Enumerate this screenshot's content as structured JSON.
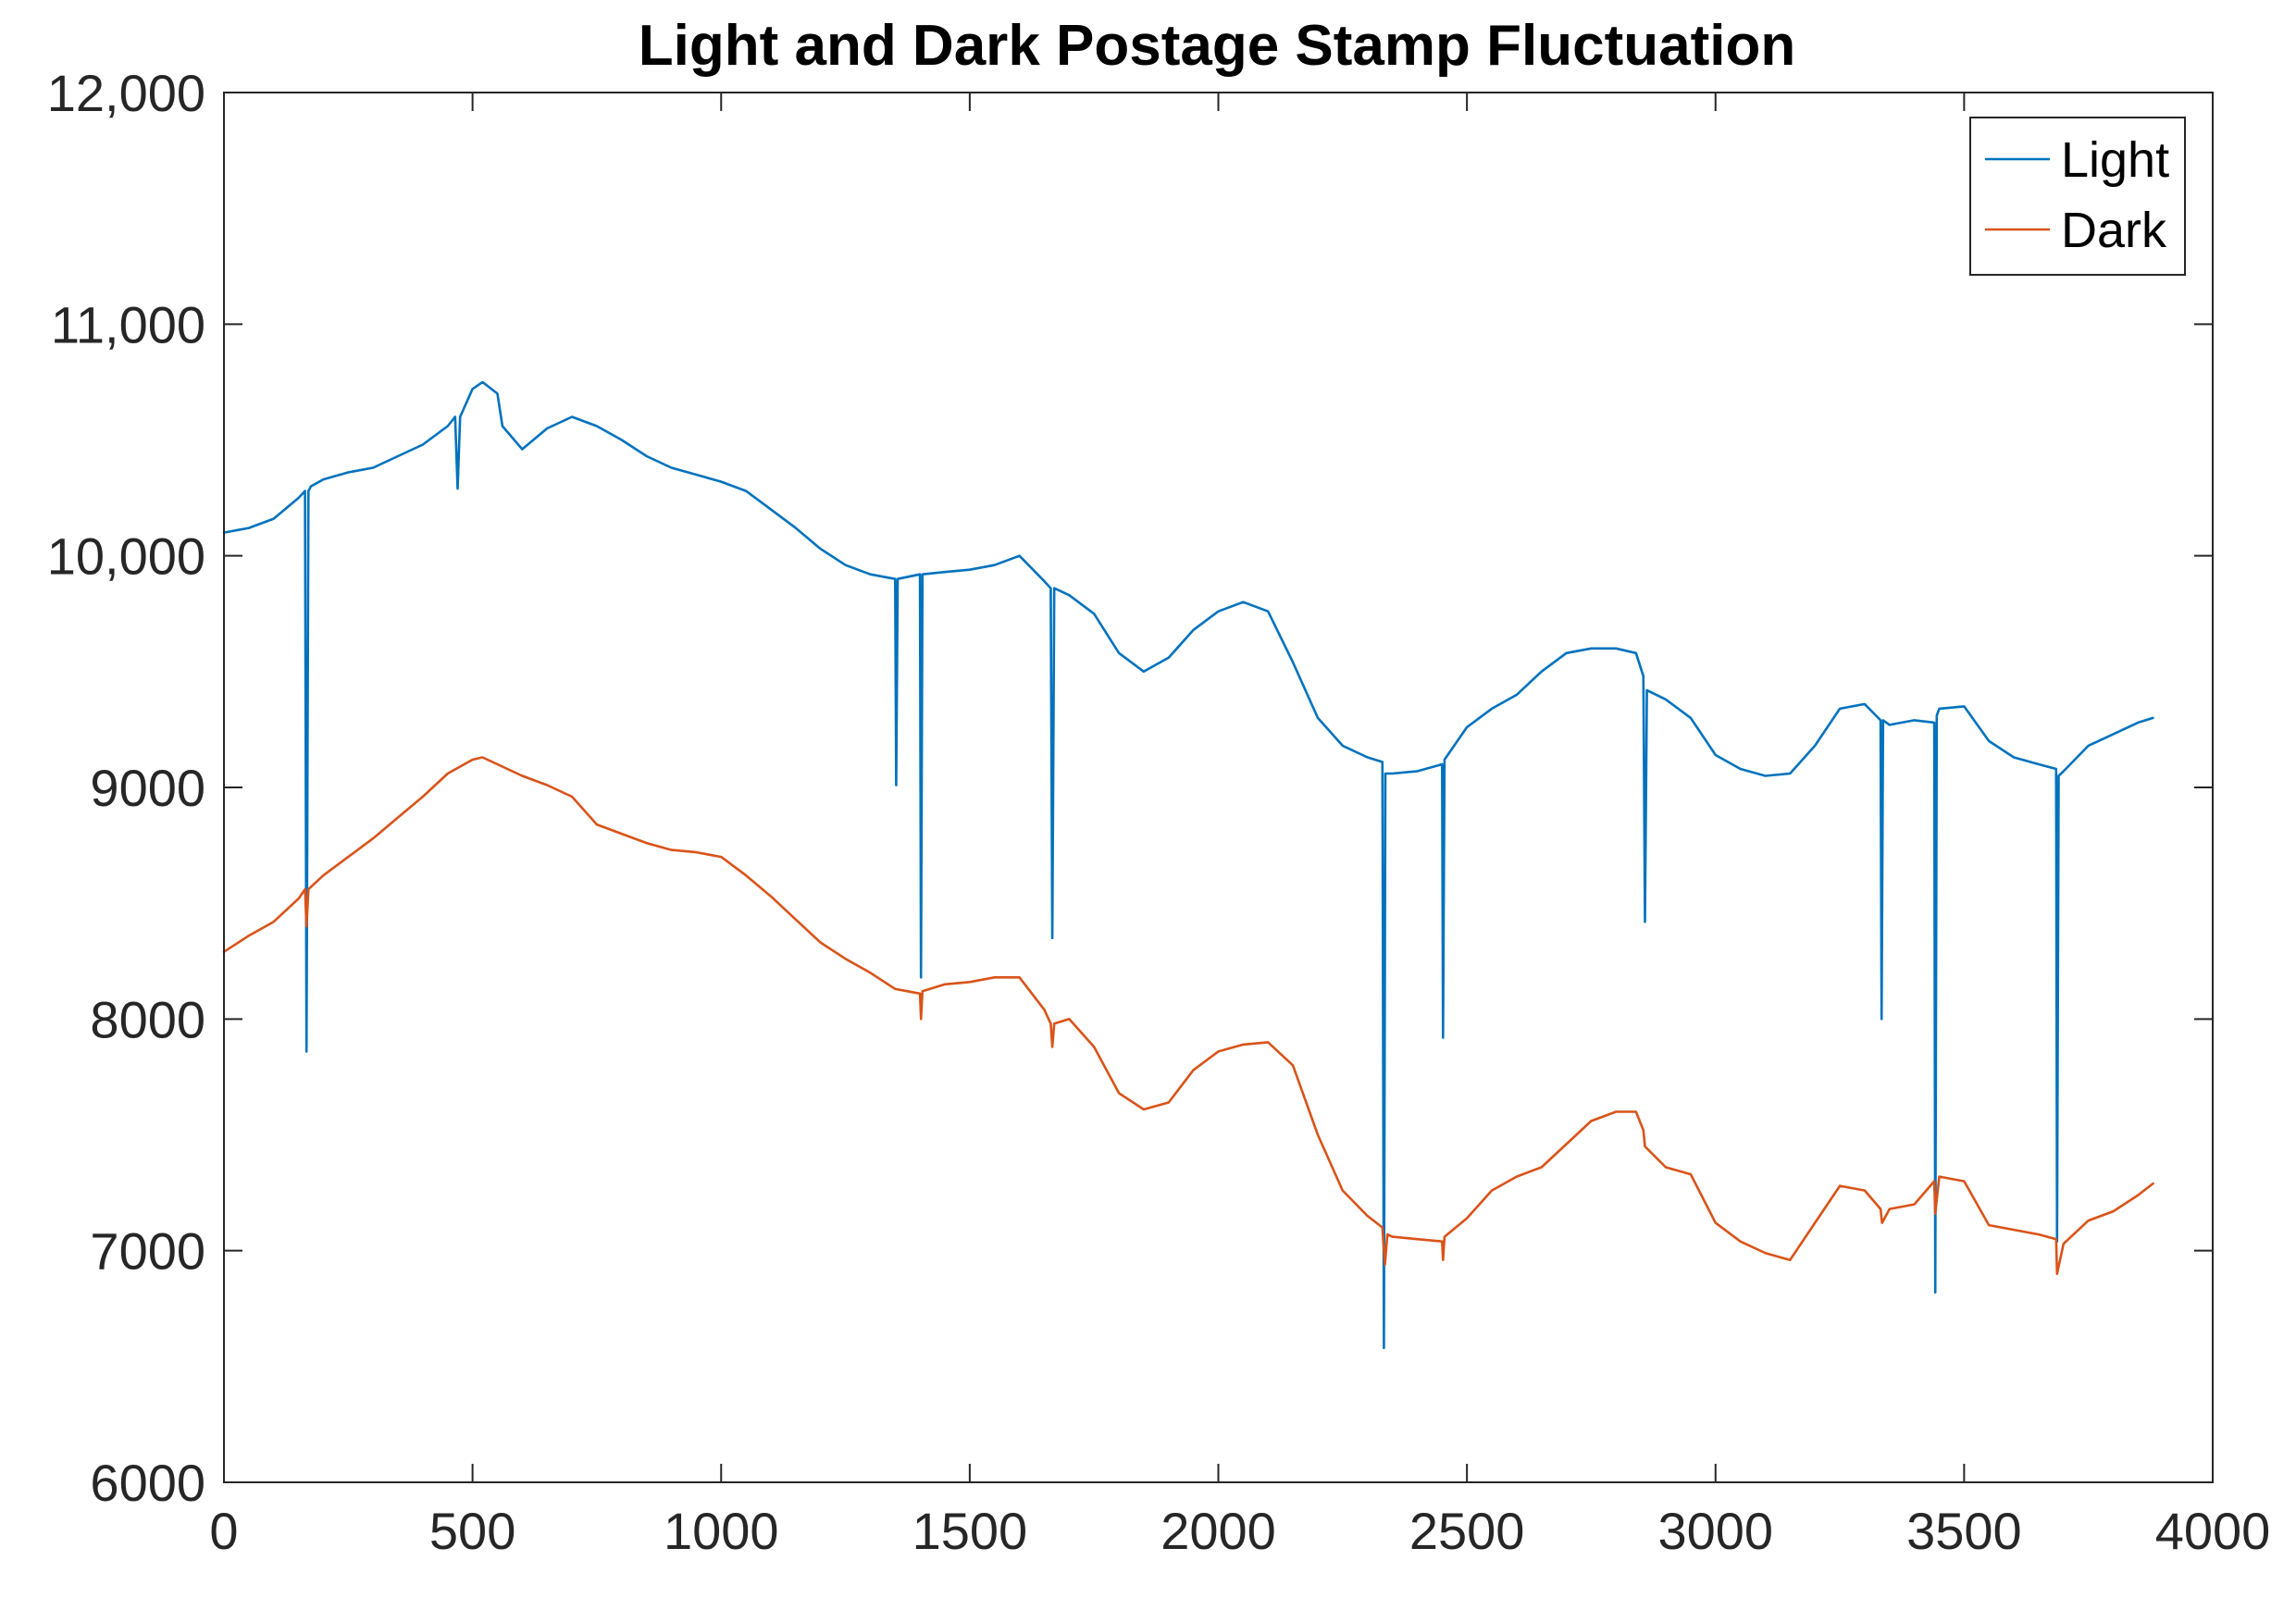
{
  "chart_data": {
    "type": "line",
    "title": "Light and Dark Postage Stamp Fluctuation",
    "xlabel": "",
    "ylabel": "",
    "xlim": [
      0,
      4000
    ],
    "ylim": [
      6000,
      12000
    ],
    "x_ticks": [
      0,
      500,
      1000,
      1500,
      2000,
      2500,
      3000,
      3500,
      4000
    ],
    "x_tick_labels": [
      "0",
      "500",
      "1000",
      "1500",
      "2000",
      "2500",
      "3000",
      "3500",
      "4000"
    ],
    "y_ticks": [
      6000,
      7000,
      8000,
      9000,
      10000,
      11000,
      12000
    ],
    "y_tick_labels": [
      "6000",
      "7000",
      "8000",
      "9000",
      "10,000",
      "11,000",
      "12,000"
    ],
    "grid": false,
    "legend_position": "top-right",
    "series": [
      {
        "name": "Light",
        "color": "#0072BD",
        "x": [
          0,
          50,
          100,
          150,
          163,
          166,
          170,
          175,
          200,
          250,
          300,
          350,
          400,
          450,
          465,
          470,
          475,
          500,
          520,
          550,
          560,
          600,
          650,
          700,
          750,
          800,
          850,
          900,
          950,
          1000,
          1050,
          1100,
          1150,
          1200,
          1250,
          1300,
          1350,
          1352,
          1355,
          1400,
          1402,
          1405,
          1450,
          1500,
          1550,
          1600,
          1650,
          1663,
          1666,
          1670,
          1700,
          1750,
          1800,
          1850,
          1900,
          1950,
          2000,
          2050,
          2100,
          2150,
          2200,
          2250,
          2300,
          2330,
          2333,
          2336,
          2340,
          2350,
          2400,
          2450,
          2452,
          2455,
          2500,
          2550,
          2600,
          2650,
          2700,
          2750,
          2800,
          2840,
          2855,
          2858,
          2862,
          2900,
          2950,
          3000,
          3050,
          3100,
          3150,
          3200,
          3250,
          3300,
          3332,
          3334,
          3337,
          3350,
          3400,
          3440,
          3442,
          3445,
          3450,
          3500,
          3550,
          3600,
          3650,
          3685,
          3687,
          3690,
          3700,
          3750,
          3800,
          3850,
          3880
        ],
        "values": [
          10100,
          10120,
          10160,
          10250,
          10280,
          7860,
          10280,
          10300,
          10330,
          10360,
          10380,
          10430,
          10480,
          10560,
          10600,
          10290,
          10600,
          10720,
          10750,
          10700,
          10560,
          10460,
          10550,
          10600,
          10560,
          10500,
          10430,
          10380,
          10350,
          10320,
          10280,
          10200,
          10120,
          10030,
          9960,
          9920,
          9900,
          9010,
          9900,
          9920,
          8180,
          9920,
          9930,
          9940,
          9960,
          10000,
          9890,
          9860,
          8350,
          9860,
          9830,
          9750,
          9580,
          9500,
          9560,
          9680,
          9760,
          9800,
          9760,
          9540,
          9300,
          9180,
          9130,
          9110,
          6580,
          9060,
          9060,
          9060,
          9070,
          9100,
          7920,
          9120,
          9260,
          9340,
          9400,
          9500,
          9580,
          9600,
          9600,
          9580,
          9480,
          8420,
          9420,
          9380,
          9300,
          9140,
          9080,
          9050,
          9060,
          9180,
          9340,
          9360,
          9290,
          8000,
          9290,
          9270,
          9290,
          9280,
          6820,
          9310,
          9340,
          9350,
          9200,
          9130,
          9100,
          9080,
          7040,
          9050,
          9070,
          9180,
          9230,
          9280,
          9300
        ]
      },
      {
        "name": "Dark",
        "color": "#D95319",
        "x": [
          0,
          50,
          100,
          150,
          163,
          166,
          170,
          200,
          250,
          300,
          350,
          400,
          450,
          500,
          520,
          550,
          600,
          650,
          700,
          750,
          800,
          850,
          900,
          950,
          1000,
          1050,
          1100,
          1150,
          1200,
          1250,
          1300,
          1350,
          1400,
          1402,
          1405,
          1450,
          1500,
          1550,
          1600,
          1650,
          1663,
          1666,
          1670,
          1700,
          1750,
          1800,
          1850,
          1900,
          1950,
          2000,
          2050,
          2100,
          2150,
          2200,
          2250,
          2300,
          2330,
          2335,
          2340,
          2350,
          2400,
          2450,
          2452,
          2455,
          2500,
          2550,
          2600,
          2650,
          2700,
          2750,
          2800,
          2840,
          2855,
          2858,
          2900,
          2950,
          3000,
          3050,
          3100,
          3150,
          3200,
          3250,
          3300,
          3332,
          3335,
          3350,
          3400,
          3440,
          3442,
          3450,
          3500,
          3550,
          3600,
          3650,
          3685,
          3687,
          3700,
          3750,
          3800,
          3850,
          3880
        ],
        "values": [
          8290,
          8360,
          8420,
          8520,
          8560,
          8400,
          8560,
          8620,
          8700,
          8780,
          8870,
          8960,
          9060,
          9120,
          9130,
          9100,
          9050,
          9010,
          8960,
          8840,
          8800,
          8760,
          8730,
          8720,
          8700,
          8620,
          8530,
          8430,
          8330,
          8260,
          8200,
          8130,
          8110,
          8000,
          8120,
          8150,
          8160,
          8180,
          8180,
          8040,
          7980,
          7880,
          7980,
          8000,
          7880,
          7680,
          7610,
          7640,
          7780,
          7860,
          7890,
          7900,
          7800,
          7500,
          7260,
          7150,
          7100,
          6940,
          7070,
          7060,
          7050,
          7040,
          6960,
          7060,
          7140,
          7260,
          7320,
          7360,
          7460,
          7560,
          7600,
          7600,
          7520,
          7450,
          7360,
          7330,
          7120,
          7040,
          6990,
          6960,
          7120,
          7280,
          7260,
          7180,
          7120,
          7180,
          7200,
          7300,
          7160,
          7320,
          7300,
          7110,
          7090,
          7070,
          7050,
          6900,
          7030,
          7130,
          7170,
          7240,
          7290
        ]
      }
    ]
  }
}
